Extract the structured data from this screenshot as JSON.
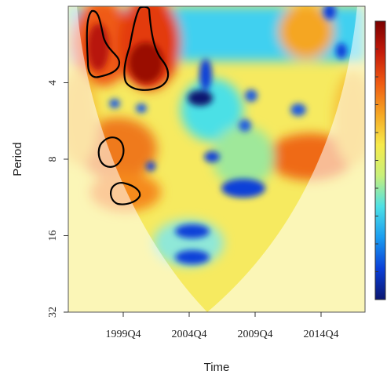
{
  "chart_data": {
    "type": "heatmap",
    "title": "",
    "xlabel": "Time",
    "ylabel": "Period",
    "y_scale": "log2",
    "ylim": [
      2,
      32
    ],
    "y_reversed": true,
    "y_ticks": [
      {
        "value": 4,
        "label": "4"
      },
      {
        "value": 8,
        "label": "8"
      },
      {
        "value": 16,
        "label": "16"
      },
      {
        "value": 32,
        "label": "32"
      }
    ],
    "x_ticks": [
      {
        "label": "1999Q4"
      },
      {
        "label": "2004Q4"
      },
      {
        "label": "2009Q4"
      },
      {
        "label": "2014Q4"
      }
    ],
    "colorbar": {
      "colors": [
        "#0b1670",
        "#0a3fd8",
        "#1a9cf0",
        "#4ce0e6",
        "#c8f07a",
        "#f6ea4a",
        "#f5a623",
        "#ef5a12",
        "#c41a0a",
        "#7a0000"
      ]
    },
    "cone_of_influence": true,
    "significance_contours": 4,
    "grid": false,
    "legend": "none"
  }
}
